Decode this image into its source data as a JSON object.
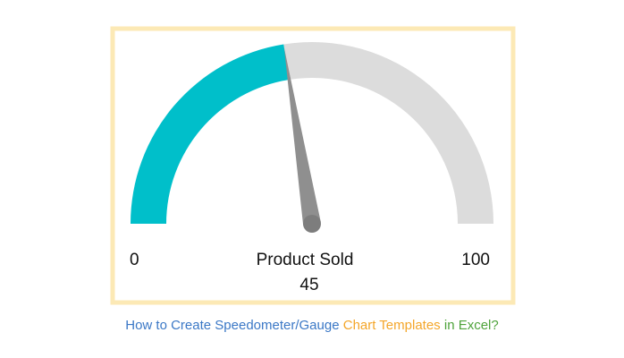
{
  "chart_data": {
    "type": "gauge",
    "label": "Product Sold",
    "min": 0,
    "max": 100,
    "value": 45,
    "color": "#00bfca",
    "track_color": "#dcdcdc",
    "needle_color": "#8f8f8f"
  },
  "caption": {
    "parts": [
      {
        "text": "How to Create Speedometer/Gauge",
        "color": "#3b78c6"
      },
      {
        "text": "Chart Templates",
        "color": "#f4a62a"
      },
      {
        "text": "in Excel?",
        "color": "#4ea33b"
      }
    ]
  }
}
